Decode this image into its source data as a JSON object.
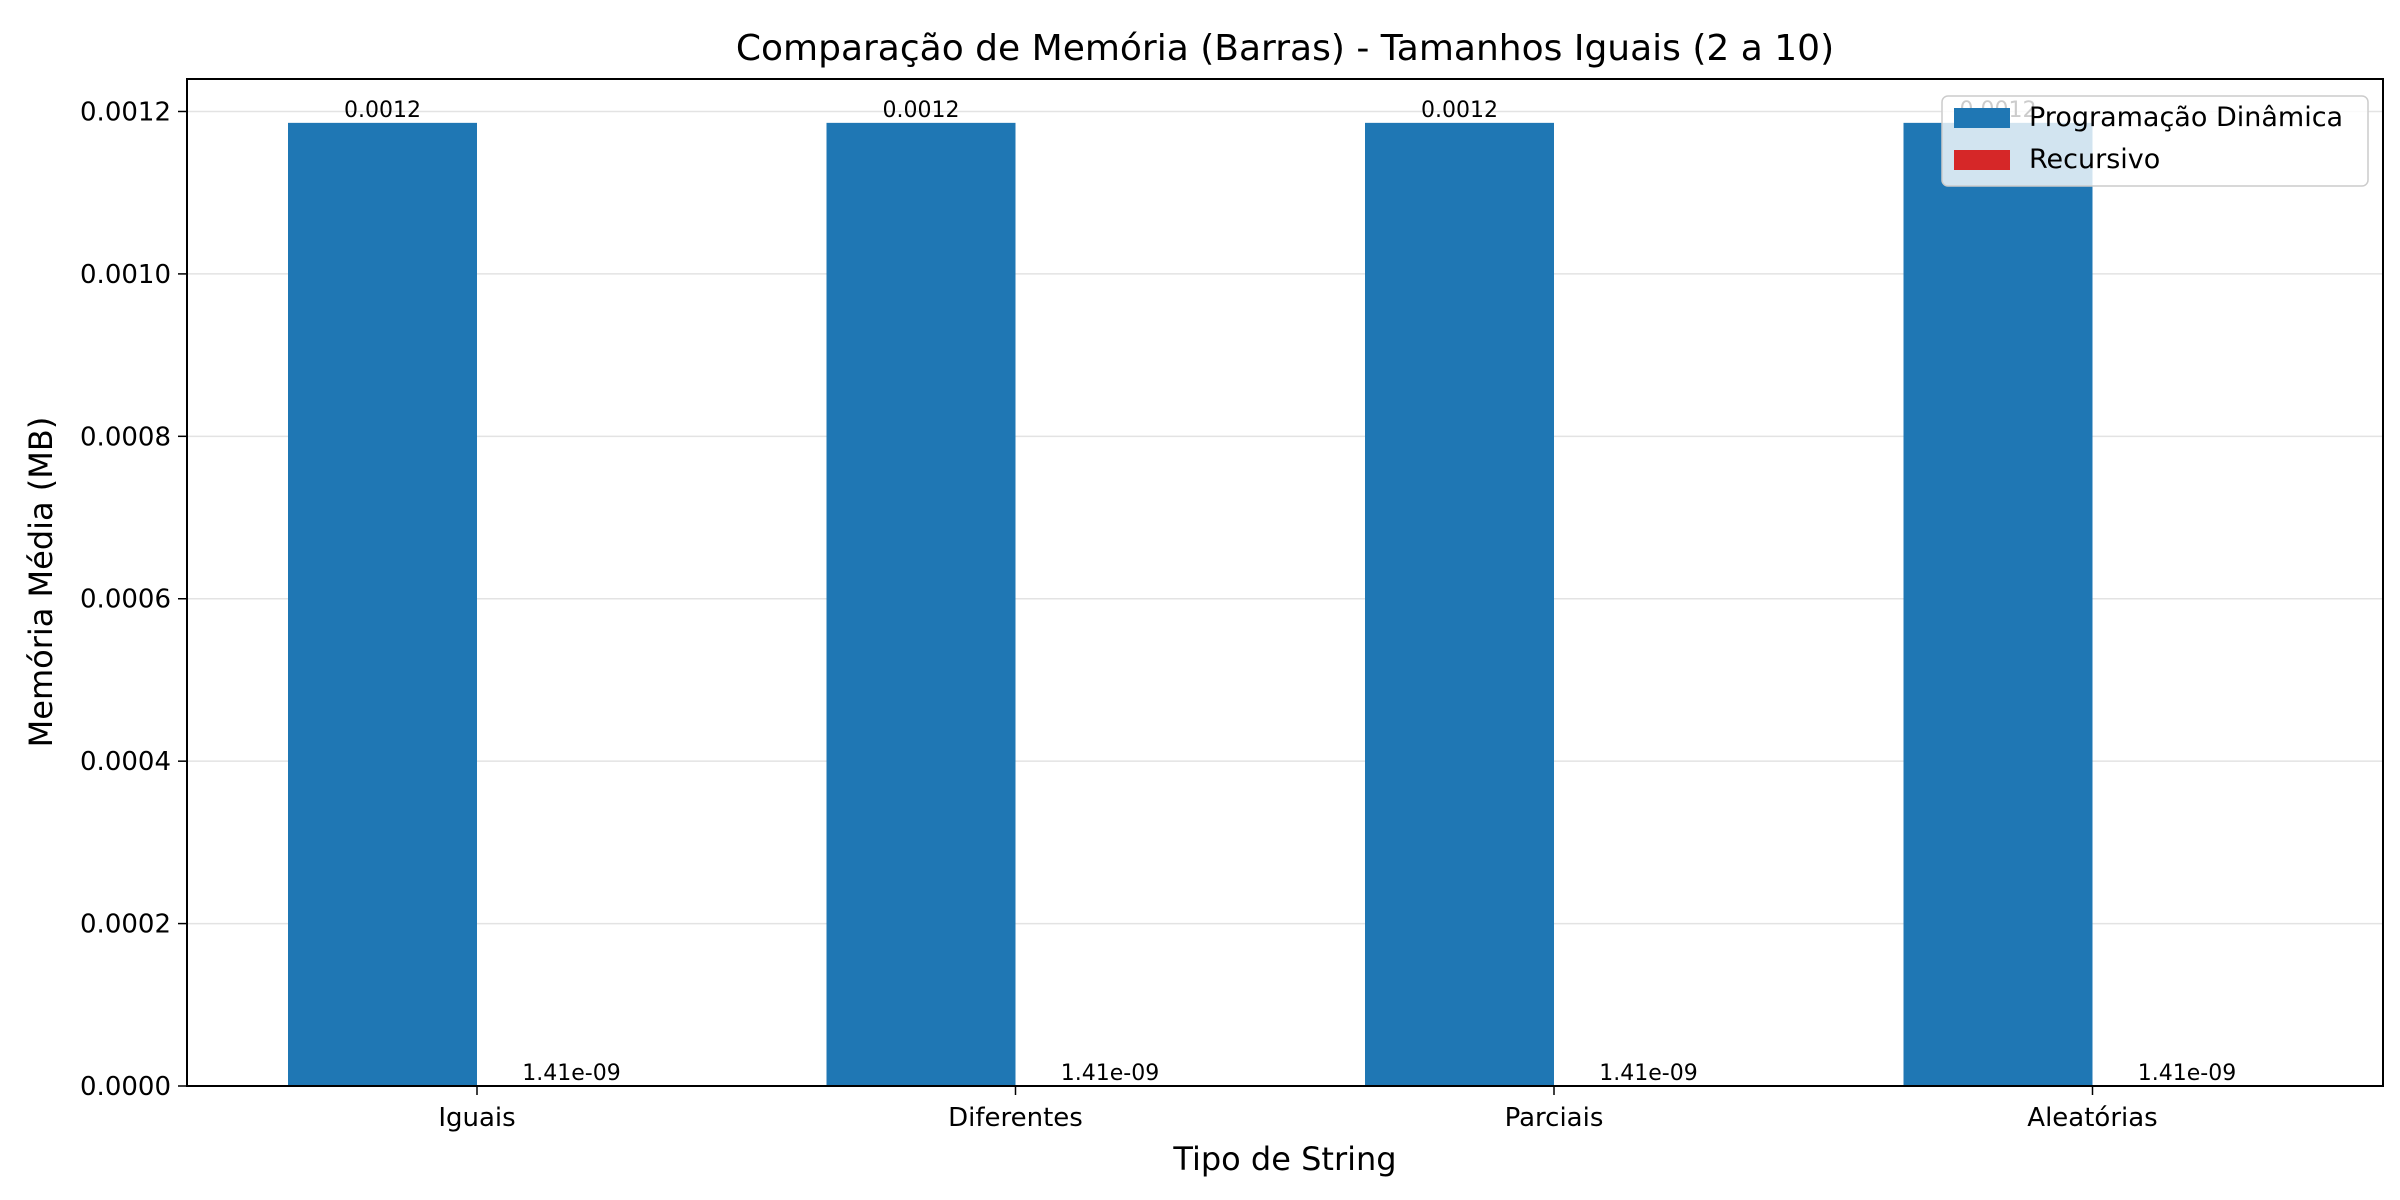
{
  "chart_data": {
    "type": "bar",
    "title": "Comparação de Memória (Barras) - Tamanhos Iguais (2 a 10)",
    "xlabel": "Tipo de String",
    "ylabel": "Memória Média (MB)",
    "categories": [
      "Iguais",
      "Diferentes",
      "Parciais",
      "Aleatórias"
    ],
    "ylim": [
      0,
      0.00124
    ],
    "yticks": [
      "0.0000",
      "0.0002",
      "0.0004",
      "0.0006",
      "0.0008",
      "0.0010",
      "0.0012"
    ],
    "ytick_values": [
      0,
      0.0002,
      0.0004,
      0.0006,
      0.0008,
      0.001,
      0.0012
    ],
    "grid": "horizontal",
    "legend_position": "top-right",
    "series": [
      {
        "name": "Programação Dinâmica",
        "color": "#1f77b4",
        "values": [
          0.001186,
          0.001186,
          0.001186,
          0.001186
        ],
        "labels": [
          "0.0012",
          "0.0012",
          "0.0012",
          "0.0012"
        ]
      },
      {
        "name": "Recursivo",
        "color": "#d62728",
        "values": [
          1.41e-09,
          1.41e-09,
          1.41e-09,
          1.41e-09
        ],
        "labels": [
          "1.41e-09",
          "1.41e-09",
          "1.41e-09",
          "1.41e-09"
        ]
      }
    ]
  }
}
